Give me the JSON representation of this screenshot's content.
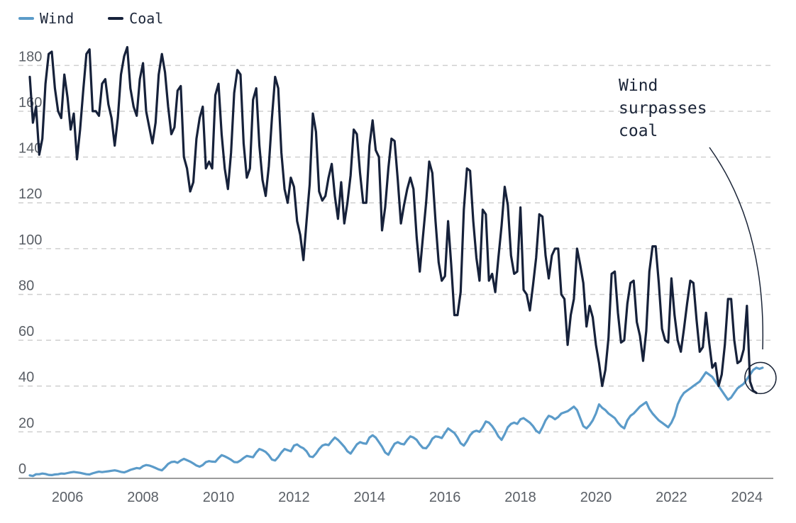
{
  "chart_data": {
    "type": "line",
    "ylim": [
      0,
      190
    ],
    "xlim": [
      2004.7,
      2024.7
    ],
    "y_ticks": [
      0,
      20,
      40,
      60,
      80,
      100,
      120,
      140,
      160,
      180
    ],
    "x_ticks": [
      2006,
      2008,
      2010,
      2012,
      2014,
      2016,
      2018,
      2020,
      2022,
      2024
    ],
    "grid": true,
    "legend_position": "top-left",
    "annotation": {
      "lines": [
        "Wind",
        "surpasses",
        "coal"
      ]
    },
    "series": [
      {
        "name": "Wind",
        "color": "#5b9bc9",
        "x_start": 2005.0,
        "step": 0.083333,
        "values": [
          1,
          0.7,
          1.5,
          1.5,
          1.8,
          1.6,
          1.2,
          1.1,
          1.4,
          1.5,
          1.8,
          1.7,
          2,
          2.3,
          2.5,
          2.3,
          2.1,
          1.8,
          1.5,
          1.4,
          1.9,
          2.3,
          2.6,
          2.4,
          2.6,
          2.8,
          3,
          3.2,
          2.9,
          2.5,
          2.3,
          2.8,
          3.4,
          3.8,
          4.2,
          4,
          5,
          5.5,
          5.3,
          4.8,
          4.2,
          3.6,
          3.2,
          4.5,
          6,
          6.8,
          7,
          6.5,
          7.5,
          8.2,
          7.6,
          7,
          6.2,
          5.3,
          4.8,
          5.5,
          6.8,
          7.2,
          7,
          6.9,
          8.5,
          9.8,
          9.3,
          8.6,
          7.8,
          6.8,
          6.7,
          7.5,
          8.6,
          9.5,
          9.2,
          8.9,
          11,
          12.5,
          12,
          11.2,
          9.8,
          7.9,
          7.5,
          9,
          11,
          12.5,
          12,
          11.5,
          14,
          14.5,
          13.5,
          12.8,
          11.5,
          9.3,
          9,
          10.5,
          12.5,
          14,
          14.5,
          14.2,
          16,
          17.5,
          16.5,
          15,
          13.5,
          11.5,
          10.5,
          12.5,
          14.5,
          15.5,
          15,
          14.8,
          17.5,
          18.5,
          17.5,
          15.5,
          13.5,
          11,
          10,
          12.5,
          14.8,
          15.5,
          14.8,
          14.5,
          16.5,
          18,
          17.5,
          16.5,
          14.5,
          13,
          12.8,
          14.5,
          17,
          18,
          17.8,
          17.3,
          19.5,
          21.5,
          20.5,
          19.5,
          17.5,
          15,
          14,
          16,
          18.5,
          20,
          20.5,
          20,
          22,
          24.5,
          24,
          22.5,
          20.5,
          18,
          16.5,
          19,
          22,
          23.5,
          24,
          23.5,
          25.5,
          26,
          25,
          24,
          22.5,
          20.5,
          19.5,
          22,
          25,
          27,
          26.5,
          25.5,
          26.5,
          28,
          28.5,
          29,
          30,
          31,
          29.5,
          26,
          22.5,
          21.5,
          23,
          25,
          28,
          32,
          30.5,
          29.5,
          28,
          27,
          26,
          24,
          22.5,
          21.5,
          25,
          27,
          28,
          29.5,
          31,
          32,
          33,
          30,
          28,
          26.5,
          25,
          24,
          23,
          22,
          24,
          27,
          32,
          35,
          37,
          38,
          39,
          40,
          41,
          42,
          44,
          46,
          45,
          44,
          42,
          40,
          38,
          36,
          34,
          35,
          37,
          39,
          40,
          41,
          43,
          45,
          47,
          48,
          47.5,
          48
        ]
      },
      {
        "name": "Coal",
        "color": "#16213a",
        "x_start": 2005.0,
        "step": 0.083333,
        "values": [
          175,
          155,
          162,
          141,
          148,
          172,
          185,
          186,
          170,
          160,
          157,
          176,
          166,
          152,
          159,
          139,
          152,
          169,
          185,
          187,
          160,
          160,
          158,
          172,
          174,
          163,
          157,
          145,
          157,
          176,
          184,
          188,
          170,
          162,
          158,
          174,
          181,
          160,
          153,
          146,
          155,
          176,
          185,
          177,
          162,
          150,
          153,
          169,
          171,
          140,
          135,
          125,
          129,
          148,
          157,
          162,
          135,
          138,
          135,
          167,
          172,
          150,
          135,
          126,
          142,
          168,
          178,
          176,
          146,
          131,
          135,
          165,
          170,
          145,
          130,
          123,
          136,
          157,
          175,
          170,
          142,
          126,
          120,
          131,
          127,
          112,
          106,
          95,
          112,
          128,
          159,
          151,
          125,
          121,
          123,
          131,
          137,
          123,
          113,
          129,
          111,
          120,
          132,
          152,
          150,
          133,
          120,
          120,
          145,
          156,
          143,
          140,
          108,
          118,
          135,
          148,
          147,
          130,
          111,
          119,
          126,
          131,
          126,
          105,
          90,
          105,
          120,
          138,
          133,
          112,
          94,
          86,
          88,
          112,
          93,
          71,
          71,
          81,
          117,
          135,
          134,
          112,
          96,
          86,
          117,
          115,
          86,
          89,
          81,
          96,
          110,
          127,
          119,
          97,
          89,
          90,
          118,
          82,
          80,
          73,
          84,
          96,
          115,
          114,
          97,
          87,
          97,
          100,
          100,
          80,
          78,
          58,
          71,
          78,
          100,
          93,
          85,
          66,
          75,
          70,
          58,
          50,
          40,
          47,
          61,
          89,
          90,
          72,
          59,
          60,
          76,
          85,
          86,
          68,
          62,
          51,
          64,
          90,
          101,
          101,
          85,
          65,
          60,
          59,
          87,
          71,
          60,
          55,
          65,
          76,
          86,
          85,
          69,
          55,
          57,
          72,
          59,
          48,
          50,
          40,
          45,
          58,
          78,
          78,
          60,
          50,
          51,
          56,
          75,
          42,
          38,
          37
        ]
      }
    ]
  }
}
